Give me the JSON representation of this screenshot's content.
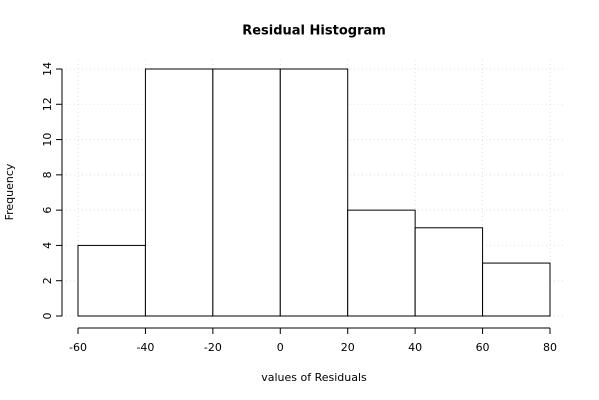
{
  "chart_data": {
    "type": "histogram",
    "title": "Residual Histogram",
    "xlabel": "values of Residuals",
    "ylabel": "Frequency",
    "bins": [
      -60,
      -40,
      -20,
      0,
      20,
      40,
      60,
      80
    ],
    "values": [
      4,
      14,
      14,
      14,
      6,
      5,
      3
    ],
    "color": "#ffffff",
    "xlim": [
      -60,
      80
    ],
    "xticks": [
      -60,
      -40,
      -20,
      0,
      20,
      40,
      60,
      80
    ],
    "ylim": [
      0,
      14
    ],
    "yticks": [
      0,
      2,
      4,
      6,
      8,
      10,
      12,
      14
    ],
    "grid": true
  }
}
